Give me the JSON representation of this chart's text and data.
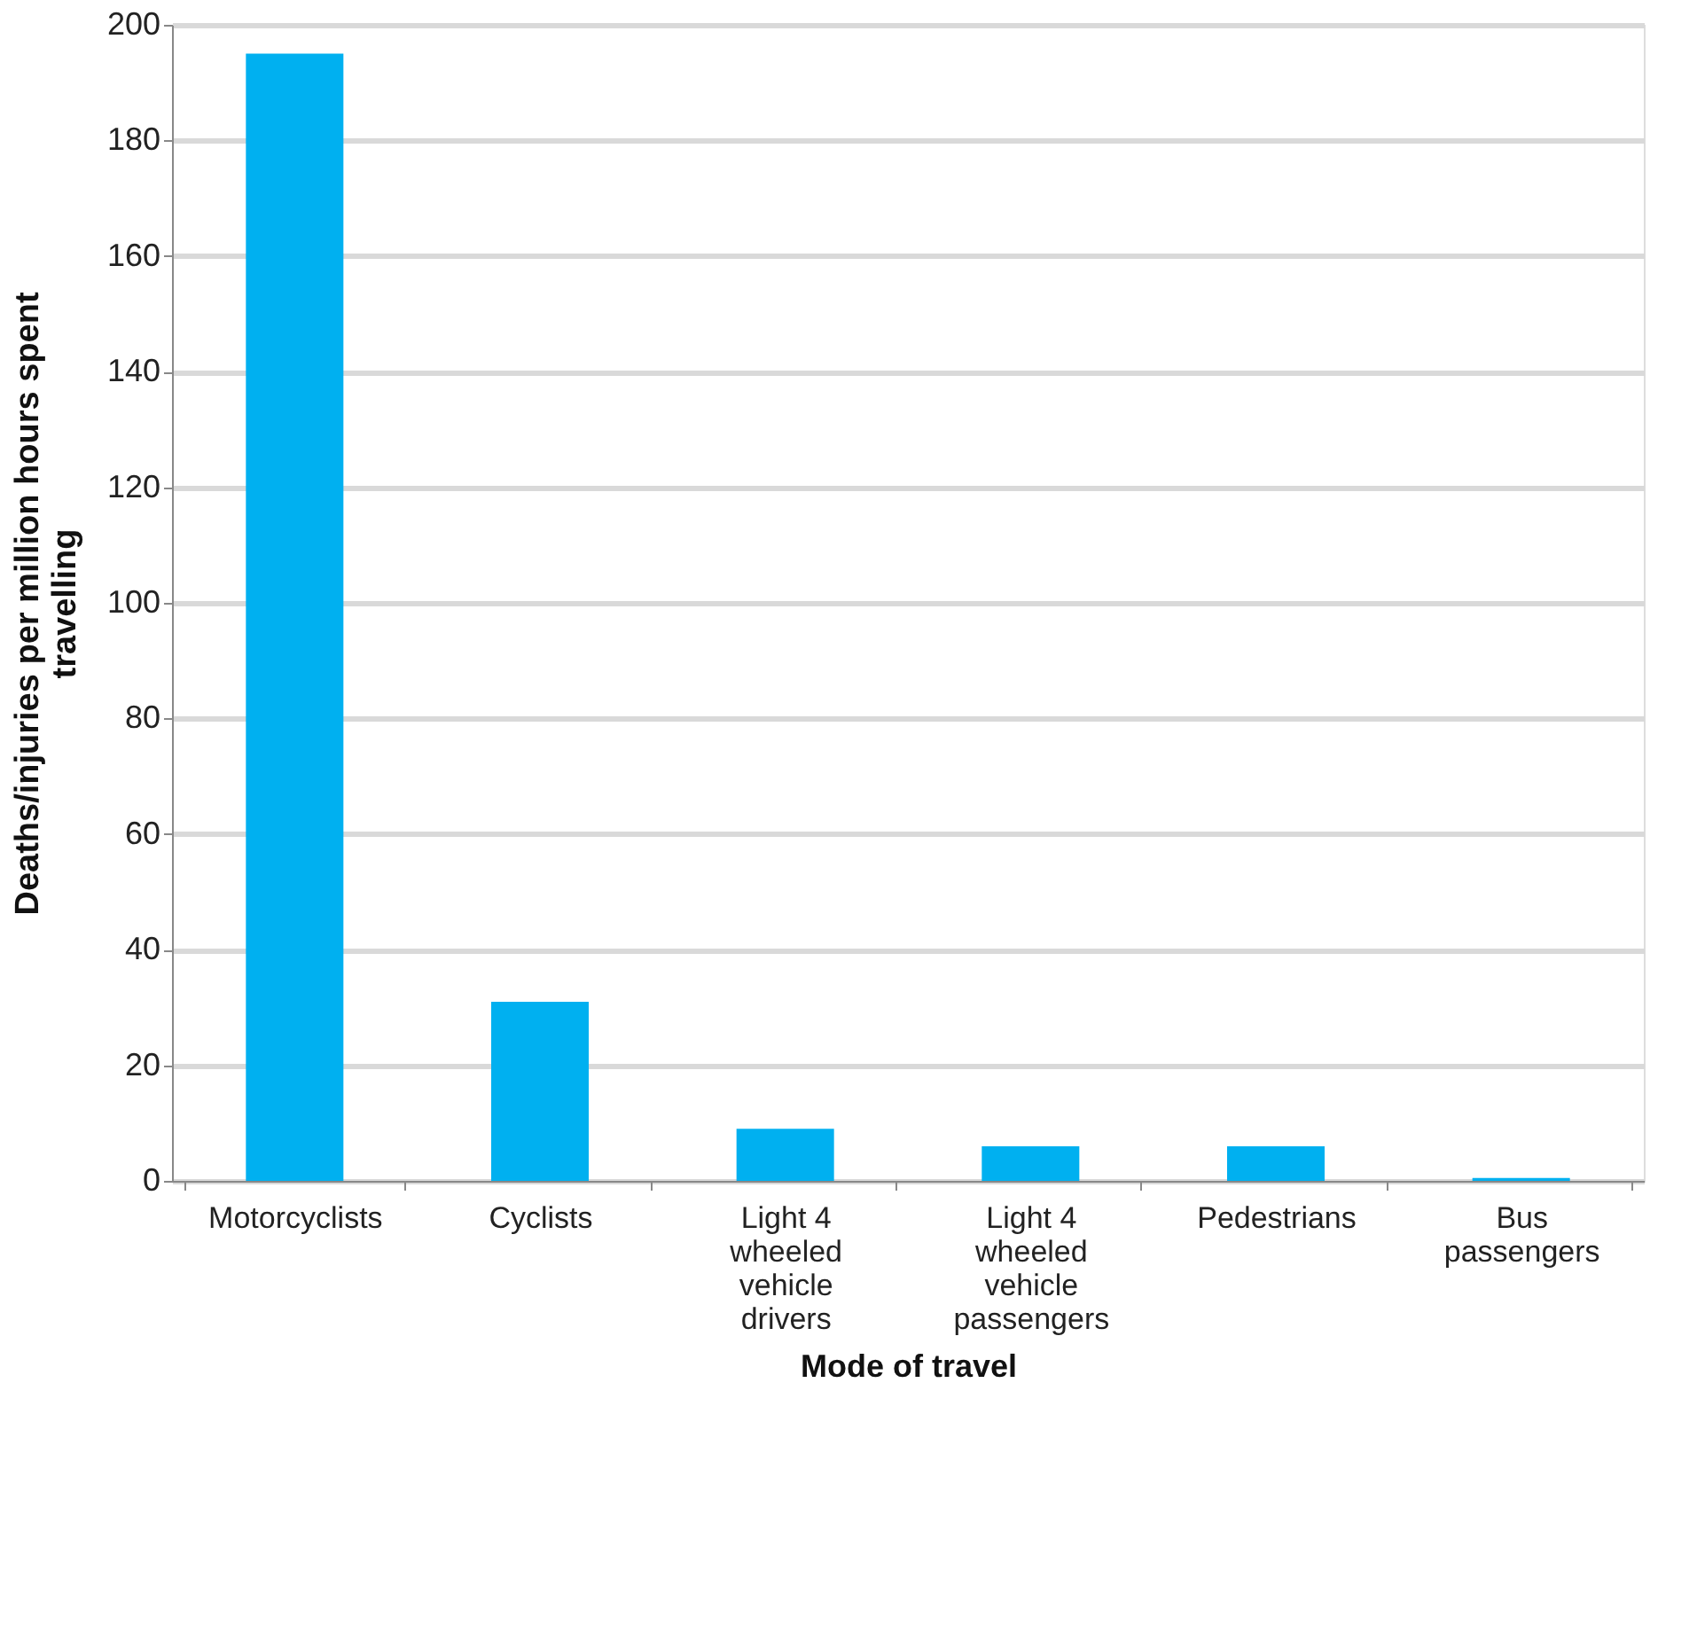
{
  "chart_data": {
    "type": "bar",
    "xlabel": "Mode of travel",
    "ylabel": "Deaths/injuries per million hours spent travelling",
    "categories": [
      "Motorcyclists",
      "Cyclists",
      "Light 4 wheeled vehicle drivers",
      "Light 4 wheeled vehicle passengers",
      "Pedestrians",
      "Bus passengers"
    ],
    "values": [
      195,
      31,
      9,
      6,
      6,
      0.5
    ],
    "color": "#00b0f0",
    "ylim": [
      0,
      200
    ],
    "yticks": [
      0,
      20,
      40,
      60,
      80,
      100,
      120,
      140,
      160,
      180,
      200
    ],
    "grid": "y"
  }
}
